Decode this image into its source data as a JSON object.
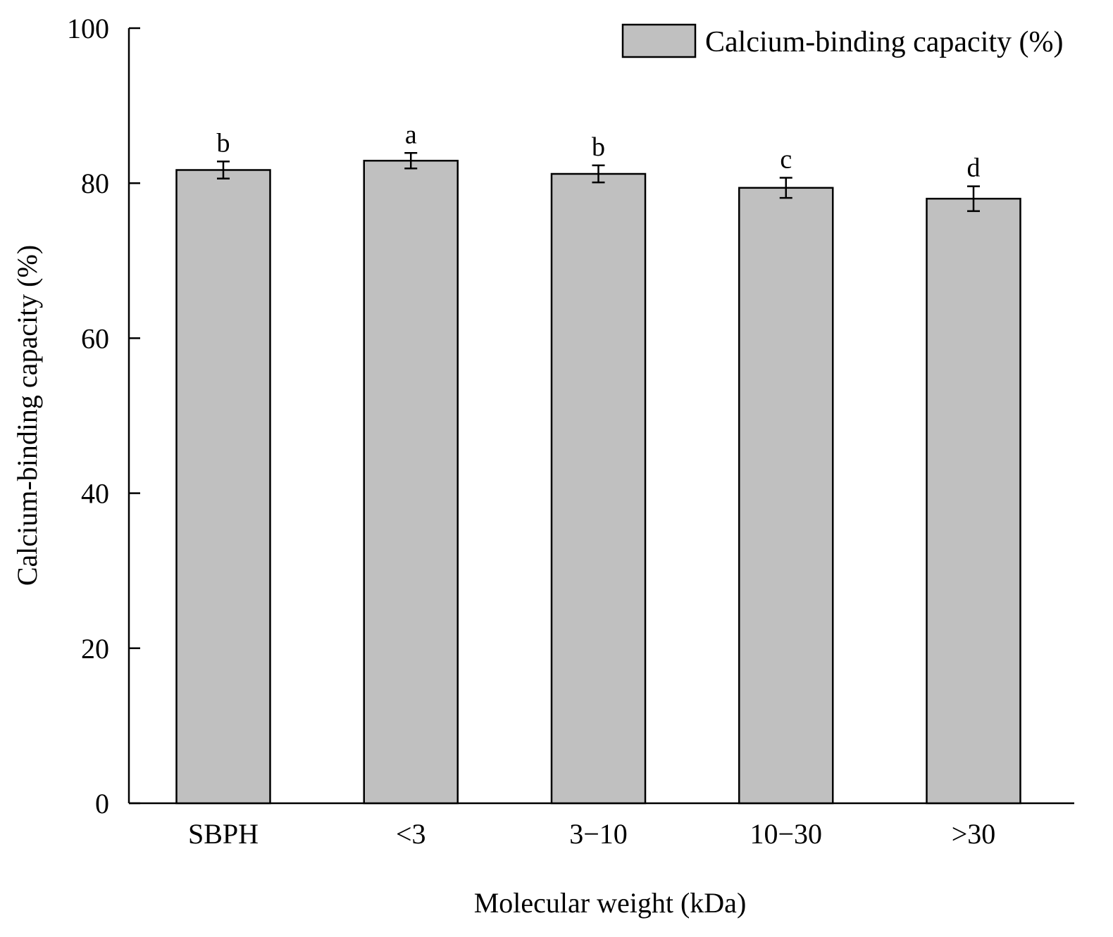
{
  "chart_data": {
    "type": "bar",
    "title": "",
    "xlabel": "Molecular weight (kDa)",
    "ylabel": "Calcium-binding capacity (%)",
    "ylim": [
      0,
      100
    ],
    "yticks": [
      0,
      20,
      40,
      60,
      80,
      100
    ],
    "categories": [
      "SBPH",
      "<3",
      "3−10",
      "10−30",
      ">30"
    ],
    "series": [
      {
        "name": "Calcium-binding capacity (%)",
        "values": [
          81.7,
          82.9,
          81.2,
          79.4,
          78.0
        ],
        "errors": [
          1.1,
          1.0,
          1.1,
          1.3,
          1.6
        ],
        "significance": [
          "b",
          "a",
          "b",
          "c",
          "d"
        ]
      }
    ],
    "legend": "top-right",
    "grid": false
  },
  "colors": {
    "bar_fill": "#c0c0c0",
    "bar_stroke": "#000000",
    "axis": "#000000"
  }
}
